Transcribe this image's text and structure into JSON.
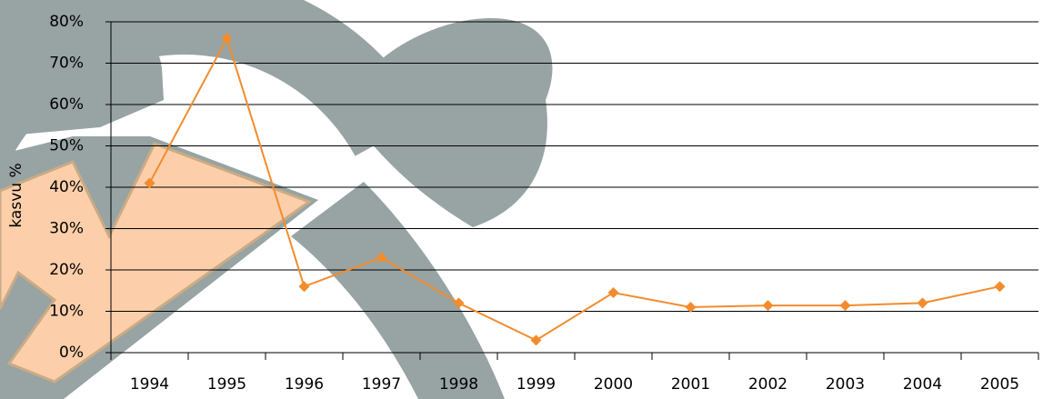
{
  "chart_data": {
    "type": "line",
    "y_label": "kasvu %",
    "categories": [
      "1994",
      "1995",
      "1996",
      "1997",
      "1998",
      "1999",
      "2000",
      "2001",
      "2002",
      "2003",
      "2004",
      "2005"
    ],
    "series": [
      {
        "color": "#f28c2e",
        "values": [
          41,
          76,
          16,
          23,
          12,
          3,
          14.5,
          11,
          11.4,
          11.4,
          12,
          16
        ]
      }
    ],
    "ylim": [
      0,
      80
    ],
    "yticks": [
      {
        "value": 0,
        "label": "0%"
      },
      {
        "value": 10,
        "label": "10%"
      },
      {
        "value": 20,
        "label": "20%"
      },
      {
        "value": 30,
        "label": "30%"
      },
      {
        "value": 40,
        "label": "40%"
      },
      {
        "value": 50,
        "label": "50%"
      },
      {
        "value": 60,
        "label": "60%"
      },
      {
        "value": 70,
        "label": "70%"
      },
      {
        "value": 80,
        "label": "80%"
      }
    ],
    "grid": true
  }
}
